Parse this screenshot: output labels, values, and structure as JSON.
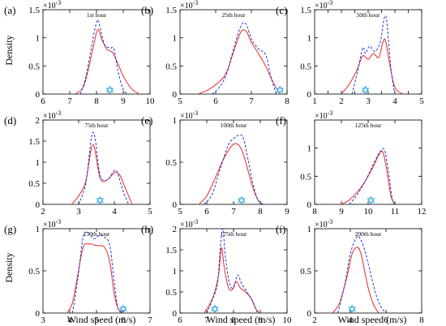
{
  "figure": {
    "xlabel": "Wind speed (m/s)",
    "ylabel": "Density",
    "exponent_label": "×10",
    "exponent_power": "-3"
  },
  "colors": {
    "actual": "#e8262a",
    "forecast": "#2433d6",
    "marker": "#36a9e1"
  },
  "chart_data": [
    {
      "type": "line",
      "letter": "(a)",
      "title": "1st hour",
      "xlim": [
        6,
        10
      ],
      "xticks": [
        6,
        7,
        8,
        9,
        10
      ],
      "ylim": [
        0,
        1.5
      ],
      "yticks": [
        0,
        0.5,
        1,
        1.5
      ],
      "marker_x": 8.5,
      "series": [
        {
          "style": "solid",
          "x": [
            7.2,
            7.5,
            7.7,
            7.9,
            8.05,
            8.2,
            8.4,
            8.6,
            8.8,
            9.0,
            9.3,
            9.6
          ],
          "values": [
            0,
            0.12,
            0.45,
            0.88,
            1.15,
            0.97,
            0.79,
            0.74,
            0.54,
            0.32,
            0.1,
            0
          ]
        },
        {
          "style": "dashed",
          "x": [
            7.4,
            7.6,
            7.8,
            7.95,
            8.05,
            8.15,
            8.3,
            8.5,
            8.65,
            8.8,
            9.0,
            9.2
          ],
          "values": [
            0,
            0.3,
            0.8,
            1.18,
            1.32,
            1.15,
            0.88,
            0.82,
            0.8,
            0.42,
            0.08,
            0
          ]
        }
      ]
    },
    {
      "type": "line",
      "letter": "(b)",
      "title": "25th hour",
      "xlim": [
        5,
        8
      ],
      "xticks": [
        5,
        6,
        7,
        8
      ],
      "ylim": [
        0,
        1.5
      ],
      "yticks": [
        0,
        0.5,
        1,
        1.5
      ],
      "marker_x": 7.8,
      "series": [
        {
          "style": "solid",
          "x": [
            5.5,
            5.8,
            6.1,
            6.3,
            6.5,
            6.7,
            6.85,
            7.0,
            7.2,
            7.4,
            7.6,
            7.8
          ],
          "values": [
            0,
            0.08,
            0.22,
            0.38,
            0.75,
            1.1,
            1.12,
            0.92,
            0.72,
            0.5,
            0.22,
            0
          ]
        },
        {
          "style": "dashed",
          "x": [
            5.9,
            6.1,
            6.3,
            6.5,
            6.7,
            6.85,
            7.0,
            7.2,
            7.4,
            7.55,
            7.7
          ],
          "values": [
            0,
            0.12,
            0.35,
            0.8,
            1.2,
            1.25,
            0.98,
            0.8,
            0.7,
            0.3,
            0
          ]
        }
      ]
    },
    {
      "type": "line",
      "letter": "(c)",
      "title": "50th hour",
      "xlim": [
        1,
        5
      ],
      "xticks": [
        1,
        1.5,
        2,
        2.5,
        3,
        3.5,
        4,
        4.5,
        5
      ],
      "xticklabels": [
        "1",
        "",
        "2",
        "",
        "3",
        "",
        "4",
        "",
        "5"
      ],
      "ylim": [
        0,
        1.5
      ],
      "yticks": [
        0,
        0.5,
        1,
        1.5
      ],
      "marker_x": 2.9,
      "series": [
        {
          "style": "solid",
          "x": [
            2.0,
            2.3,
            2.6,
            2.8,
            3.0,
            3.2,
            3.4,
            3.55,
            3.65,
            3.8,
            4.0,
            4.3
          ],
          "values": [
            0,
            0.18,
            0.45,
            0.68,
            0.62,
            0.72,
            0.65,
            0.92,
            0.95,
            0.55,
            0.12,
            0
          ]
        },
        {
          "style": "dashed",
          "x": [
            2.4,
            2.6,
            2.8,
            2.9,
            3.05,
            3.25,
            3.45,
            3.6,
            3.7,
            3.85,
            4.0
          ],
          "values": [
            0,
            0.4,
            0.82,
            0.72,
            0.85,
            0.76,
            0.92,
            1.35,
            1.28,
            0.45,
            0
          ]
        }
      ]
    },
    {
      "type": "line",
      "letter": "(d)",
      "title": "75th hour",
      "xlim": [
        2,
        5
      ],
      "xticks": [
        2,
        3,
        4,
        5
      ],
      "ylim": [
        0,
        2
      ],
      "yticks": [
        0,
        0.5,
        1,
        1.5,
        2
      ],
      "marker_x": 3.6,
      "series": [
        {
          "style": "solid",
          "x": [
            2.8,
            3.0,
            3.2,
            3.4,
            3.6,
            3.8,
            4.0,
            4.15,
            4.3,
            4.5
          ],
          "values": [
            0,
            0.2,
            0.55,
            1.42,
            0.62,
            0.58,
            0.75,
            0.7,
            0.4,
            0
          ]
        },
        {
          "style": "dashed",
          "x": [
            3.0,
            3.2,
            3.35,
            3.45,
            3.6,
            3.8,
            4.0,
            4.1,
            4.25,
            4.4
          ],
          "values": [
            0,
            0.5,
            1.55,
            1.62,
            0.7,
            0.58,
            0.8,
            0.72,
            0.3,
            0
          ]
        }
      ]
    },
    {
      "type": "line",
      "letter": "(e)",
      "title": "100th hour",
      "xlim": [
        5,
        9
      ],
      "xticks": [
        5,
        6,
        7,
        8,
        9
      ],
      "ylim": [
        0,
        1
      ],
      "yticks": [
        0,
        0.5,
        1
      ],
      "marker_x": 7.3,
      "series": [
        {
          "style": "solid",
          "x": [
            5.7,
            6.0,
            6.3,
            6.6,
            6.9,
            7.1,
            7.3,
            7.5,
            7.7,
            7.9,
            8.1
          ],
          "values": [
            0,
            0.1,
            0.3,
            0.52,
            0.68,
            0.72,
            0.65,
            0.45,
            0.22,
            0.06,
            0
          ]
        },
        {
          "style": "dashed",
          "x": [
            5.9,
            6.2,
            6.5,
            6.8,
            7.0,
            7.2,
            7.35,
            7.5,
            7.7,
            7.9,
            8.1
          ],
          "values": [
            0,
            0.12,
            0.42,
            0.7,
            0.78,
            0.82,
            0.8,
            0.6,
            0.28,
            0.06,
            0
          ]
        }
      ]
    },
    {
      "type": "line",
      "letter": "(f)",
      "title": "125th hour",
      "xlim": [
        8,
        12
      ],
      "xticks": [
        8,
        9,
        10,
        11,
        12
      ],
      "ylim": [
        0,
        1.5
      ],
      "yticks": [
        0,
        0.5,
        1
      ],
      "marker_x": 10.1,
      "series": [
        {
          "style": "solid",
          "x": [
            9.0,
            9.3,
            9.6,
            9.9,
            10.2,
            10.4,
            10.55,
            10.7,
            10.85,
            11.0
          ],
          "values": [
            0,
            0.08,
            0.22,
            0.42,
            0.68,
            0.88,
            0.93,
            0.6,
            0.15,
            0
          ]
        },
        {
          "style": "dashed",
          "x": [
            9.3,
            9.6,
            9.9,
            10.2,
            10.4,
            10.6,
            10.75,
            10.9,
            11.0
          ],
          "values": [
            0,
            0.18,
            0.42,
            0.72,
            0.9,
            0.98,
            0.6,
            0.1,
            0
          ]
        }
      ]
    },
    {
      "type": "line",
      "letter": "(g)",
      "title": "150th hour",
      "xlim": [
        3,
        7
      ],
      "xticks": [
        3,
        4,
        5,
        6,
        7
      ],
      "ylim": [
        0,
        1
      ],
      "yticks": [
        0,
        0.5,
        1
      ],
      "marker_x": 6.0,
      "series": [
        {
          "style": "solid",
          "x": [
            3.9,
            4.1,
            4.3,
            4.5,
            4.7,
            5.0,
            5.3,
            5.5,
            5.65,
            5.8,
            6.0
          ],
          "values": [
            0,
            0.12,
            0.45,
            0.78,
            0.82,
            0.8,
            0.78,
            0.6,
            0.25,
            0.06,
            0
          ]
        },
        {
          "style": "dashed",
          "x": [
            4.1,
            4.3,
            4.5,
            4.7,
            4.9,
            5.1,
            5.3,
            5.5,
            5.65,
            5.8,
            6.0
          ],
          "values": [
            0,
            0.4,
            0.9,
            0.95,
            0.88,
            0.92,
            0.9,
            0.8,
            0.4,
            0.06,
            0
          ]
        }
      ]
    },
    {
      "type": "line",
      "letter": "(h)",
      "title": "175th hour",
      "xlim": [
        6,
        10
      ],
      "xticks": [
        6,
        7,
        8,
        9,
        10
      ],
      "ylim": [
        0,
        2
      ],
      "yticks": [
        0,
        0.5,
        1,
        1.5,
        2
      ],
      "marker_x": 7.3,
      "series": [
        {
          "style": "solid",
          "x": [
            6.9,
            7.1,
            7.3,
            7.45,
            7.55,
            7.65,
            7.8,
            7.95,
            8.1,
            8.25,
            8.45,
            8.65,
            8.85,
            9.0
          ],
          "values": [
            0,
            0.2,
            0.5,
            0.95,
            1.55,
            1.1,
            0.62,
            0.55,
            0.75,
            0.6,
            0.5,
            0.35,
            0.08,
            0
          ]
        },
        {
          "style": "dashed",
          "x": [
            7.0,
            7.2,
            7.4,
            7.5,
            7.6,
            7.7,
            7.85,
            8.0,
            8.15,
            8.3,
            8.5,
            8.7,
            8.9
          ],
          "values": [
            0,
            0.3,
            0.7,
            1.5,
            2.0,
            1.3,
            0.7,
            0.6,
            0.9,
            0.7,
            0.5,
            0.3,
            0
          ]
        }
      ]
    },
    {
      "type": "line",
      "letter": "(i)",
      "title": "200th hour",
      "xlim": [
        2,
        8
      ],
      "xticks": [
        2,
        4,
        6,
        8
      ],
      "ylim": [
        0,
        1
      ],
      "yticks": [
        0,
        0.5,
        1
      ],
      "marker_x": 4.1,
      "series": [
        {
          "style": "solid",
          "x": [
            3.0,
            3.4,
            3.8,
            4.1,
            4.4,
            4.6,
            4.8,
            5.0,
            5.3,
            5.6
          ],
          "values": [
            0,
            0.12,
            0.42,
            0.7,
            0.78,
            0.7,
            0.5,
            0.3,
            0.1,
            0
          ]
        },
        {
          "style": "dashed",
          "x": [
            3.3,
            3.7,
            4.0,
            4.3,
            4.5,
            4.8,
            5.1,
            5.4,
            5.7,
            6.0
          ],
          "values": [
            0,
            0.35,
            0.7,
            0.88,
            0.9,
            0.75,
            0.5,
            0.25,
            0.08,
            0
          ]
        }
      ]
    }
  ]
}
